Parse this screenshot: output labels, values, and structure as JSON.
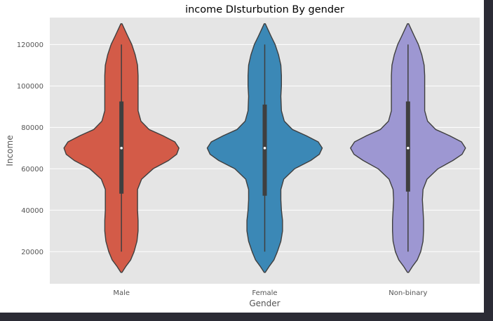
{
  "chart_data": {
    "type": "violin",
    "title": "income  DIsturbution By gender",
    "xlabel": "Gender",
    "ylabel": "Income",
    "categories": [
      "Male",
      "Female",
      "Non-binary"
    ],
    "ylim": [
      4500,
      133000
    ],
    "yticks": [
      20000,
      40000,
      60000,
      80000,
      100000,
      120000
    ],
    "ytick_labels": [
      "20000",
      "40000",
      "60000",
      "80000",
      "100000",
      "120000"
    ],
    "grid": true,
    "background": "#e5e5e5",
    "series": [
      {
        "name": "Male",
        "color": "#d35b48",
        "min": 20000,
        "max": 120000,
        "median": 70000,
        "q1": 48000,
        "q3": 92500,
        "kde_extent": [
          10000,
          130000
        ],
        "kde": [
          [
            10000,
            0.01
          ],
          [
            13000,
            0.08
          ],
          [
            16000,
            0.16
          ],
          [
            20000,
            0.22
          ],
          [
            25000,
            0.27
          ],
          [
            30000,
            0.29
          ],
          [
            35000,
            0.29
          ],
          [
            40000,
            0.28
          ],
          [
            45000,
            0.28
          ],
          [
            50000,
            0.28
          ],
          [
            55000,
            0.35
          ],
          [
            60000,
            0.55
          ],
          [
            64000,
            0.82
          ],
          [
            67000,
            0.96
          ],
          [
            70000,
            1.0
          ],
          [
            73000,
            0.93
          ],
          [
            76000,
            0.72
          ],
          [
            79000,
            0.48
          ],
          [
            83000,
            0.34
          ],
          [
            88000,
            0.29
          ],
          [
            95000,
            0.29
          ],
          [
            100000,
            0.29
          ],
          [
            105000,
            0.29
          ],
          [
            110000,
            0.28
          ],
          [
            115000,
            0.24
          ],
          [
            120000,
            0.18
          ],
          [
            124000,
            0.11
          ],
          [
            127000,
            0.06
          ],
          [
            130000,
            0.01
          ]
        ]
      },
      {
        "name": "Female",
        "color": "#3b88b6",
        "min": 20000,
        "max": 120000,
        "median": 70000,
        "q1": 47000,
        "q3": 91000,
        "kde_extent": [
          10000,
          130000
        ],
        "kde": [
          [
            10000,
            0.01
          ],
          [
            13000,
            0.08
          ],
          [
            16000,
            0.16
          ],
          [
            20000,
            0.22
          ],
          [
            25000,
            0.28
          ],
          [
            30000,
            0.31
          ],
          [
            35000,
            0.31
          ],
          [
            40000,
            0.29
          ],
          [
            45000,
            0.28
          ],
          [
            50000,
            0.28
          ],
          [
            55000,
            0.33
          ],
          [
            60000,
            0.52
          ],
          [
            64000,
            0.8
          ],
          [
            67000,
            0.95
          ],
          [
            70000,
            1.0
          ],
          [
            73000,
            0.93
          ],
          [
            76000,
            0.72
          ],
          [
            79000,
            0.48
          ],
          [
            83000,
            0.34
          ],
          [
            88000,
            0.29
          ],
          [
            95000,
            0.28
          ],
          [
            100000,
            0.29
          ],
          [
            105000,
            0.29
          ],
          [
            110000,
            0.28
          ],
          [
            115000,
            0.24
          ],
          [
            120000,
            0.18
          ],
          [
            124000,
            0.11
          ],
          [
            127000,
            0.06
          ],
          [
            130000,
            0.01
          ]
        ]
      },
      {
        "name": "Non-binary",
        "color": "#9d97d2",
        "min": 20000,
        "max": 120000,
        "median": 70000,
        "q1": 49000,
        "q3": 92500,
        "kde_extent": [
          10000,
          130000
        ],
        "kde": [
          [
            10000,
            0.01
          ],
          [
            13000,
            0.08
          ],
          [
            16000,
            0.16
          ],
          [
            20000,
            0.22
          ],
          [
            25000,
            0.26
          ],
          [
            30000,
            0.27
          ],
          [
            35000,
            0.27
          ],
          [
            40000,
            0.26
          ],
          [
            45000,
            0.25
          ],
          [
            50000,
            0.26
          ],
          [
            55000,
            0.33
          ],
          [
            60000,
            0.52
          ],
          [
            64000,
            0.78
          ],
          [
            67000,
            0.94
          ],
          [
            70000,
            1.0
          ],
          [
            73000,
            0.93
          ],
          [
            76000,
            0.72
          ],
          [
            79000,
            0.48
          ],
          [
            83000,
            0.34
          ],
          [
            88000,
            0.29
          ],
          [
            95000,
            0.29
          ],
          [
            100000,
            0.29
          ],
          [
            105000,
            0.29
          ],
          [
            110000,
            0.28
          ],
          [
            115000,
            0.24
          ],
          [
            120000,
            0.18
          ],
          [
            124000,
            0.11
          ],
          [
            127000,
            0.06
          ],
          [
            130000,
            0.01
          ]
        ]
      }
    ]
  }
}
